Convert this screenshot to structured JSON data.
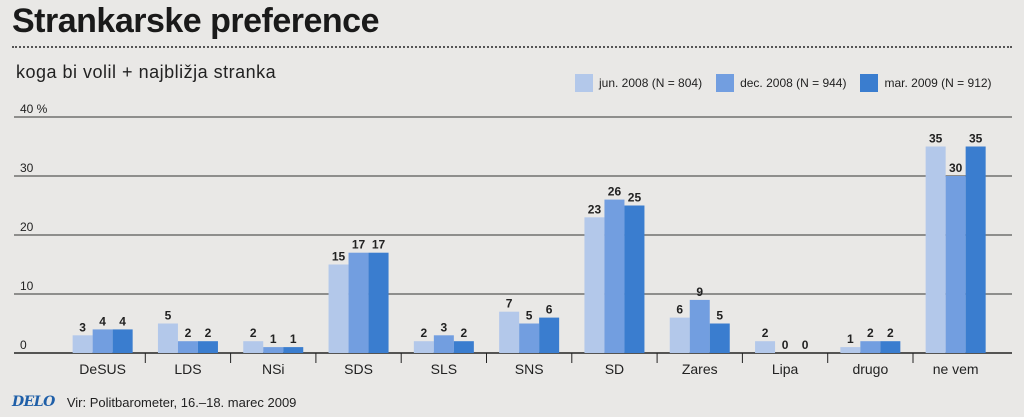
{
  "title": "Strankarske preference",
  "subtitle": "koga bi volil + najbližja stranka",
  "source": "Vir: Politbarometer, 16.–18. marec 2009",
  "logo": "DELO",
  "colors": {
    "series": [
      "#b3c8ea",
      "#729ee0",
      "#3a7dcf"
    ],
    "grid": "#333333",
    "background": "#e9e8e6"
  },
  "chart_data": {
    "type": "bar",
    "categories": [
      "DeSUS",
      "LDS",
      "NSi",
      "SDS",
      "SLS",
      "SNS",
      "SD",
      "Zares",
      "Lipa",
      "drugo",
      "ne vem"
    ],
    "series": [
      {
        "name": "jun. 2008 (N = 804)",
        "values": [
          3,
          5,
          2,
          15,
          2,
          7,
          23,
          6,
          2,
          1,
          35
        ]
      },
      {
        "name": "dec. 2008 (N = 944)",
        "values": [
          4,
          2,
          1,
          17,
          3,
          5,
          26,
          9,
          0,
          2,
          30
        ]
      },
      {
        "name": "mar. 2009 (N = 912)",
        "values": [
          4,
          2,
          1,
          17,
          2,
          6,
          25,
          5,
          0,
          2,
          35
        ]
      }
    ],
    "ylim": [
      0,
      40
    ],
    "yticks": [
      0,
      10,
      20,
      30,
      40
    ],
    "ytick_labels": [
      "0",
      "10",
      "20",
      "30",
      "40 %"
    ],
    "grid": true,
    "legend": "top-right"
  }
}
